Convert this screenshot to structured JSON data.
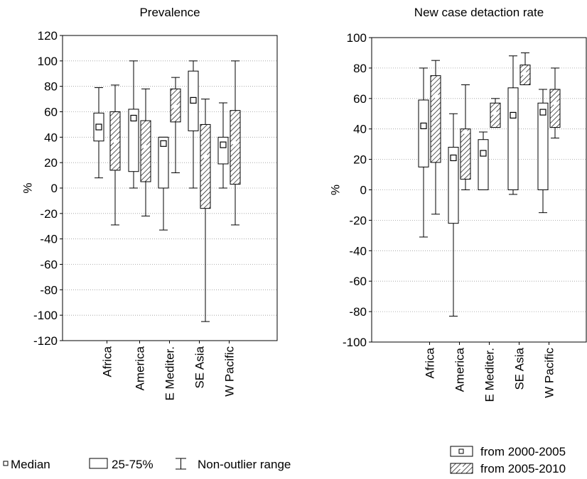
{
  "chart_data": [
    {
      "type": "boxplot",
      "title": "Prevalence",
      "ylabel": "%",
      "ylim": [
        -120,
        120
      ],
      "yticks": [
        120,
        100,
        80,
        60,
        40,
        20,
        0,
        -20,
        -40,
        -60,
        -80,
        -100,
        -120
      ],
      "grid": true,
      "categories": [
        "Africa",
        "America",
        "E Mediter.",
        "SE Asia",
        "W Pacific"
      ],
      "series": [
        {
          "name": "from 2000-2005",
          "boxes": [
            {
              "whisker_low": 8,
              "q1": 37,
              "median": 48,
              "q3": 59,
              "whisker_high": 79
            },
            {
              "whisker_low": 0,
              "q1": 13,
              "median": 55,
              "q3": 62,
              "whisker_high": 100
            },
            {
              "whisker_low": -33,
              "q1": 0,
              "median": 35,
              "q3": 40,
              "whisker_high": 40
            },
            {
              "whisker_low": 0,
              "q1": 45,
              "median": 69,
              "q3": 92,
              "whisker_high": 100
            },
            {
              "whisker_low": 0,
              "q1": 19,
              "median": 34,
              "q3": 40,
              "whisker_high": 67
            }
          ]
        },
        {
          "name": "from 2005-2010",
          "boxes": [
            {
              "whisker_low": -29,
              "q1": 14,
              "median": 37,
              "q3": 60,
              "whisker_high": 81
            },
            {
              "whisker_low": -22,
              "q1": 5,
              "median": 32,
              "q3": 53,
              "whisker_high": 78
            },
            {
              "whisker_low": 12,
              "q1": 52,
              "median": 64,
              "q3": 78,
              "whisker_high": 87
            },
            {
              "whisker_low": -105,
              "q1": -16,
              "median": 25,
              "q3": 50,
              "whisker_high": 70
            },
            {
              "whisker_low": -29,
              "q1": 3,
              "median": 35,
              "q3": 61,
              "whisker_high": 100
            }
          ]
        }
      ]
    },
    {
      "type": "boxplot",
      "title": "New case detaction rate",
      "ylabel": "%",
      "ylim": [
        -100,
        100
      ],
      "yticks": [
        100,
        80,
        60,
        40,
        20,
        0,
        -20,
        -40,
        -60,
        -80,
        -100
      ],
      "grid": true,
      "categories": [
        "Africa",
        "America",
        "E Mediter.",
        "SE Asia",
        "W Pacific"
      ],
      "series": [
        {
          "name": "from 2000-2005",
          "boxes": [
            {
              "whisker_low": -31,
              "q1": 15,
              "median": 42,
              "q3": 59,
              "whisker_high": 80
            },
            {
              "whisker_low": -83,
              "q1": -22,
              "median": 21,
              "q3": 28,
              "whisker_high": 50
            },
            {
              "whisker_low": 0,
              "q1": 0,
              "median": 24,
              "q3": 33,
              "whisker_high": 38
            },
            {
              "whisker_low": -3,
              "q1": 0,
              "median": 49,
              "q3": 67,
              "whisker_high": 88
            },
            {
              "whisker_low": -15,
              "q1": 0,
              "median": 51,
              "q3": 57,
              "whisker_high": 66
            }
          ]
        },
        {
          "name": "from 2005-2010",
          "boxes": [
            {
              "whisker_low": -16,
              "q1": 18,
              "median": 62,
              "q3": 75,
              "whisker_high": 85
            },
            {
              "whisker_low": 0,
              "q1": 7,
              "median": 38,
              "q3": 40,
              "whisker_high": 69
            },
            {
              "whisker_low": 41,
              "q1": 41,
              "median": 50,
              "q3": 57,
              "whisker_high": 60
            },
            {
              "whisker_low": 69,
              "q1": 69,
              "median": 76,
              "q3": 82,
              "whisker_high": 90
            },
            {
              "whisker_low": 34,
              "q1": 41,
              "median": 57,
              "q3": 66,
              "whisker_high": 80
            }
          ]
        }
      ]
    }
  ],
  "legend_left": {
    "median": "Median",
    "iqr": "25-75%",
    "range": "Non-outlier range"
  },
  "legend_right": [
    "from 2000-2005",
    "from 2005-2010"
  ]
}
